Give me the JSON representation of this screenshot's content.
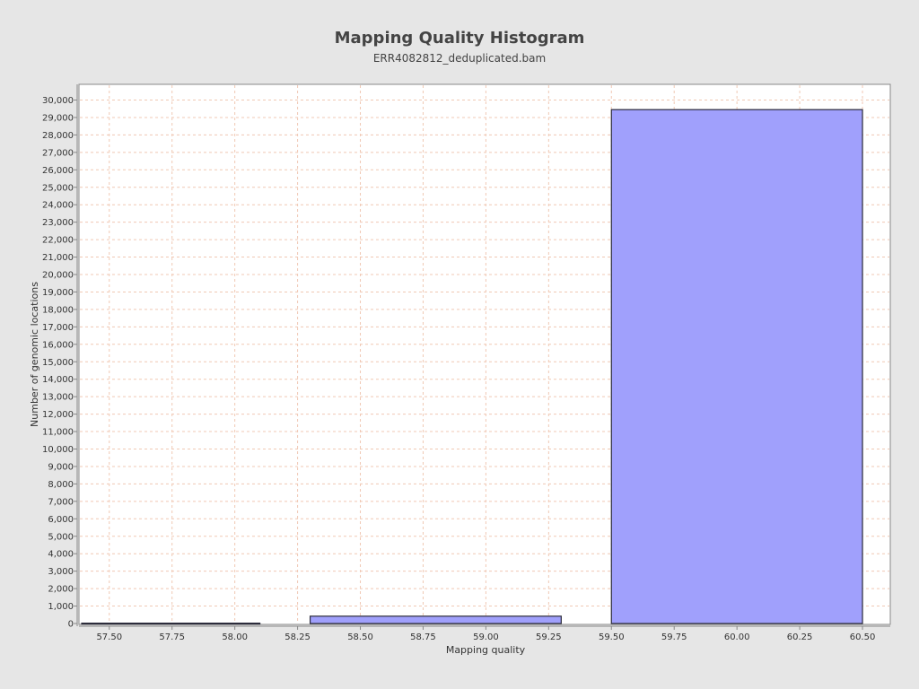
{
  "chart_data": {
    "type": "bar",
    "title": "Mapping Quality Histogram",
    "subtitle": "ERR4082812_deduplicated.bam",
    "xlabel": "Mapping quality",
    "ylabel": "Number of genomic locations",
    "xlim": [
      57.39,
      60.6
    ],
    "ylim": [
      0,
      30800
    ],
    "x_ticks": [
      57.5,
      57.75,
      58.0,
      58.25,
      58.5,
      58.75,
      59.0,
      59.25,
      59.5,
      59.75,
      60.0,
      60.25,
      60.5
    ],
    "x_tick_labels": [
      "57.50",
      "57.75",
      "58.00",
      "58.25",
      "58.50",
      "58.75",
      "59.00",
      "59.25",
      "59.50",
      "59.75",
      "60.00",
      "60.25",
      "60.50"
    ],
    "y_ticks": [
      0,
      1000,
      2000,
      3000,
      4000,
      5000,
      6000,
      7000,
      8000,
      9000,
      10000,
      11000,
      12000,
      13000,
      14000,
      15000,
      16000,
      17000,
      18000,
      19000,
      20000,
      21000,
      22000,
      23000,
      24000,
      25000,
      26000,
      27000,
      28000,
      29000,
      30000
    ],
    "y_tick_labels": [
      "0",
      "1,000",
      "2,000",
      "3,000",
      "4,000",
      "5,000",
      "6,000",
      "7,000",
      "8,000",
      "9,000",
      "10,000",
      "11,000",
      "12,000",
      "13,000",
      "14,000",
      "15,000",
      "16,000",
      "17,000",
      "18,000",
      "19,000",
      "20,000",
      "21,000",
      "22,000",
      "23,000",
      "24,000",
      "25,000",
      "26,000",
      "27,000",
      "28,000",
      "29,000",
      "30,000"
    ],
    "bins": [
      {
        "start": 57.39,
        "end": 58.1,
        "value": 20
      },
      {
        "start": 58.3,
        "end": 59.3,
        "value": 420
      },
      {
        "start": 59.5,
        "end": 60.5,
        "value": 29450
      }
    ],
    "grid": true,
    "colors": {
      "bar_fill": "#a0a0fc",
      "bar_stroke": "#2b2b3a",
      "grid": "#f0c8b4",
      "plot_bg": "#ffffff",
      "page_bg": "#e6e6e6",
      "axis": "#888888",
      "text": "#333333"
    }
  }
}
